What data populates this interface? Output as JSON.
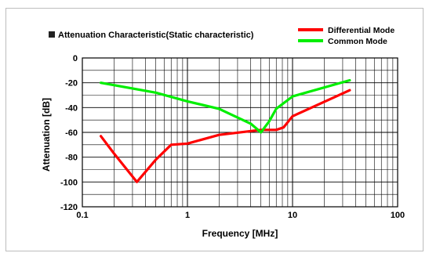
{
  "chart_data": {
    "type": "line",
    "title": "Attenuation Characteristic(Static characteristic)",
    "xlabel": "Frequency [MHz]",
    "ylabel": "Attenuation [dB]",
    "x_scale": "log",
    "xlim": [
      0.1,
      100
    ],
    "ylim": [
      -120,
      0
    ],
    "x_ticks": [
      {
        "value": 0.1,
        "label": "0.1"
      },
      {
        "value": 1,
        "label": "1"
      },
      {
        "value": 10,
        "label": "10"
      },
      {
        "value": 100,
        "label": "100"
      }
    ],
    "y_ticks": [
      {
        "value": 0,
        "label": "0"
      },
      {
        "value": -20,
        "label": "-20"
      },
      {
        "value": -40,
        "label": "-40"
      },
      {
        "value": -60,
        "label": "-60"
      },
      {
        "value": -80,
        "label": "-80"
      },
      {
        "value": -100,
        "label": "-100"
      },
      {
        "value": -120,
        "label": "-120"
      }
    ],
    "grid": true,
    "legend_position": "top-right",
    "series": [
      {
        "name": "Differential Mode",
        "color": "#ff0000",
        "points": [
          [
            0.15,
            -63
          ],
          [
            0.2,
            -77
          ],
          [
            0.33,
            -100
          ],
          [
            0.5,
            -82
          ],
          [
            0.7,
            -70
          ],
          [
            1,
            -69
          ],
          [
            2,
            -62
          ],
          [
            5,
            -58
          ],
          [
            7,
            -58
          ],
          [
            8.2,
            -56
          ],
          [
            10,
            -47
          ],
          [
            35,
            -26
          ]
        ]
      },
      {
        "name": "Common Mode",
        "color": "#00ee00",
        "points": [
          [
            0.15,
            -20
          ],
          [
            0.5,
            -28
          ],
          [
            1,
            -35
          ],
          [
            2,
            -41
          ],
          [
            4,
            -53
          ],
          [
            5,
            -60
          ],
          [
            6,
            -51
          ],
          [
            7,
            -41
          ],
          [
            10,
            -31
          ],
          [
            35,
            -18
          ]
        ]
      }
    ]
  }
}
